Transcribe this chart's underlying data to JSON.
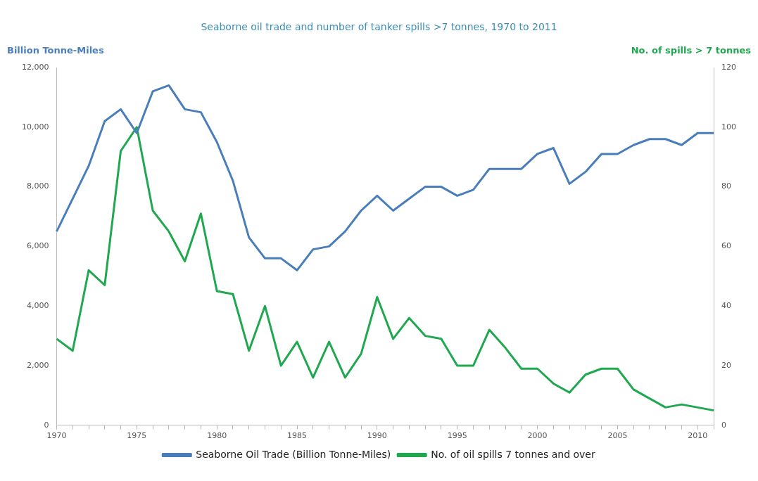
{
  "chart_data": {
    "type": "line",
    "title": "Seaborne oil trade and number of tanker spills >7 tonnes, 1970 to 2011",
    "ylabel": "Billion Tonne-Miles",
    "y2label": "No. of spills > 7 tonnes",
    "categories": [
      "1970",
      null,
      null,
      null,
      null,
      "1975",
      null,
      null,
      null,
      null,
      "1980",
      null,
      null,
      null,
      null,
      "1985",
      null,
      null,
      null,
      null,
      "1990",
      null,
      null,
      null,
      null,
      "1995",
      null,
      null,
      null,
      null,
      "2000",
      null,
      null,
      null,
      null,
      "2005",
      null,
      null,
      null,
      null,
      "2010",
      null
    ],
    "series": [
      {
        "name": "Seaborne Oil Trade (Billion Tonne-Miles)",
        "color": "#4a7ebb",
        "values": [
          6500,
          7600,
          8700,
          10200,
          10600,
          9800,
          11200,
          11400,
          10600,
          10500,
          9500,
          8200,
          6300,
          5600,
          5600,
          5200,
          5900,
          6000,
          6500,
          7200,
          7700,
          7200,
          7600,
          8000,
          8000,
          7700,
          7900,
          8600,
          8600,
          8600,
          9100,
          9300,
          8100,
          8500,
          9100,
          9100,
          9400,
          9600,
          9600,
          9400,
          9800,
          9800
        ]
      },
      {
        "name": "No. of oil spills 7 tonnes and over",
        "color": "#1fa84f",
        "axis": "y2",
        "values": [
          29,
          25,
          52,
          47,
          92,
          100,
          72,
          65,
          55,
          71,
          45,
          44,
          25,
          40,
          20,
          28,
          16,
          28,
          16,
          24,
          43,
          29,
          36,
          30,
          29,
          20,
          20,
          32,
          26,
          19,
          19,
          14,
          11,
          17,
          19,
          19,
          12,
          9,
          6,
          7,
          6,
          5
        ]
      }
    ],
    "ylim": [
      0,
      12000
    ],
    "yticks": [
      {
        "value": 0,
        "label": "0"
      },
      {
        "value": 2000,
        "label": "2,000"
      },
      {
        "value": 4000,
        "label": "4,000"
      },
      {
        "value": 6000,
        "label": "6,000"
      },
      {
        "value": 8000,
        "label": "8,000"
      },
      {
        "value": 10000,
        "label": "10,000"
      },
      {
        "value": 12000,
        "label": "12,000"
      }
    ],
    "y2lim": [
      0,
      120
    ],
    "y2ticks": [
      0,
      20,
      40,
      60,
      80,
      100,
      120
    ],
    "grid": false,
    "legend": "bottom",
    "marker": "none",
    "line_style": "solid"
  }
}
